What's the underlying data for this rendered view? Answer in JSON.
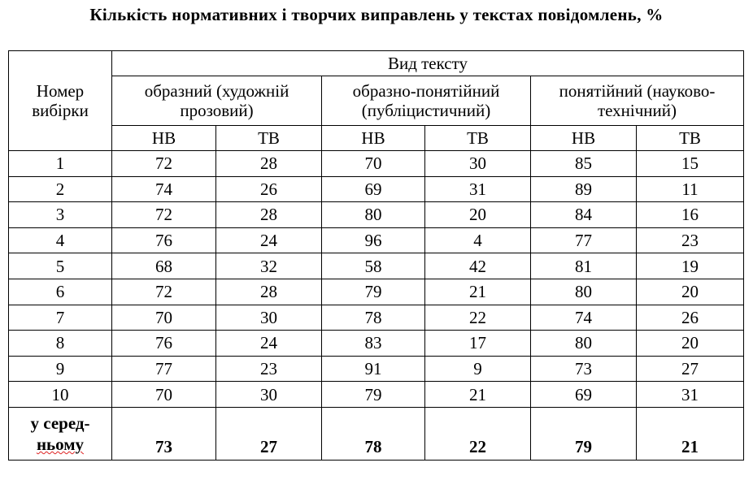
{
  "title": "Кількість нормативних і творчих виправлень у текстах повідомлень, %",
  "table": {
    "row_header": [
      "Номер",
      "вибірки"
    ],
    "group_header": "Вид тексту",
    "subgroups": [
      {
        "line1": "образний (художній",
        "line2": "прозовий)"
      },
      {
        "line1": "образно-понятійний",
        "line2": "(публіцистичний)"
      },
      {
        "line1": "понятійний (науково-",
        "line2": "технічний)"
      }
    ],
    "col_abbr": [
      "НВ",
      "ТВ",
      "НВ",
      "ТВ",
      "НВ",
      "ТВ"
    ],
    "rows": [
      {
        "n": "1",
        "v": [
          "72",
          "28",
          "70",
          "30",
          "85",
          "15"
        ]
      },
      {
        "n": "2",
        "v": [
          "74",
          "26",
          "69",
          "31",
          "89",
          "11"
        ]
      },
      {
        "n": "3",
        "v": [
          "72",
          "28",
          "80",
          "20",
          "84",
          "16"
        ]
      },
      {
        "n": "4",
        "v": [
          "76",
          "24",
          "96",
          "4",
          "77",
          "23"
        ]
      },
      {
        "n": "5",
        "v": [
          "68",
          "32",
          "58",
          "42",
          "81",
          "19"
        ]
      },
      {
        "n": "6",
        "v": [
          "72",
          "28",
          "79",
          "21",
          "80",
          "20"
        ]
      },
      {
        "n": "7",
        "v": [
          "70",
          "30",
          "78",
          "22",
          "74",
          "26"
        ]
      },
      {
        "n": "8",
        "v": [
          "76",
          "24",
          "83",
          "17",
          "80",
          "20"
        ]
      },
      {
        "n": "9",
        "v": [
          "77",
          "23",
          "91",
          "9",
          "73",
          "27"
        ]
      },
      {
        "n": "10",
        "v": [
          "70",
          "30",
          "79",
          "21",
          "69",
          "31"
        ]
      }
    ],
    "average": {
      "label_line1": "у серед-",
      "label_line2": "ньому",
      "v": [
        "73",
        "27",
        "78",
        "22",
        "79",
        "21"
      ]
    }
  }
}
